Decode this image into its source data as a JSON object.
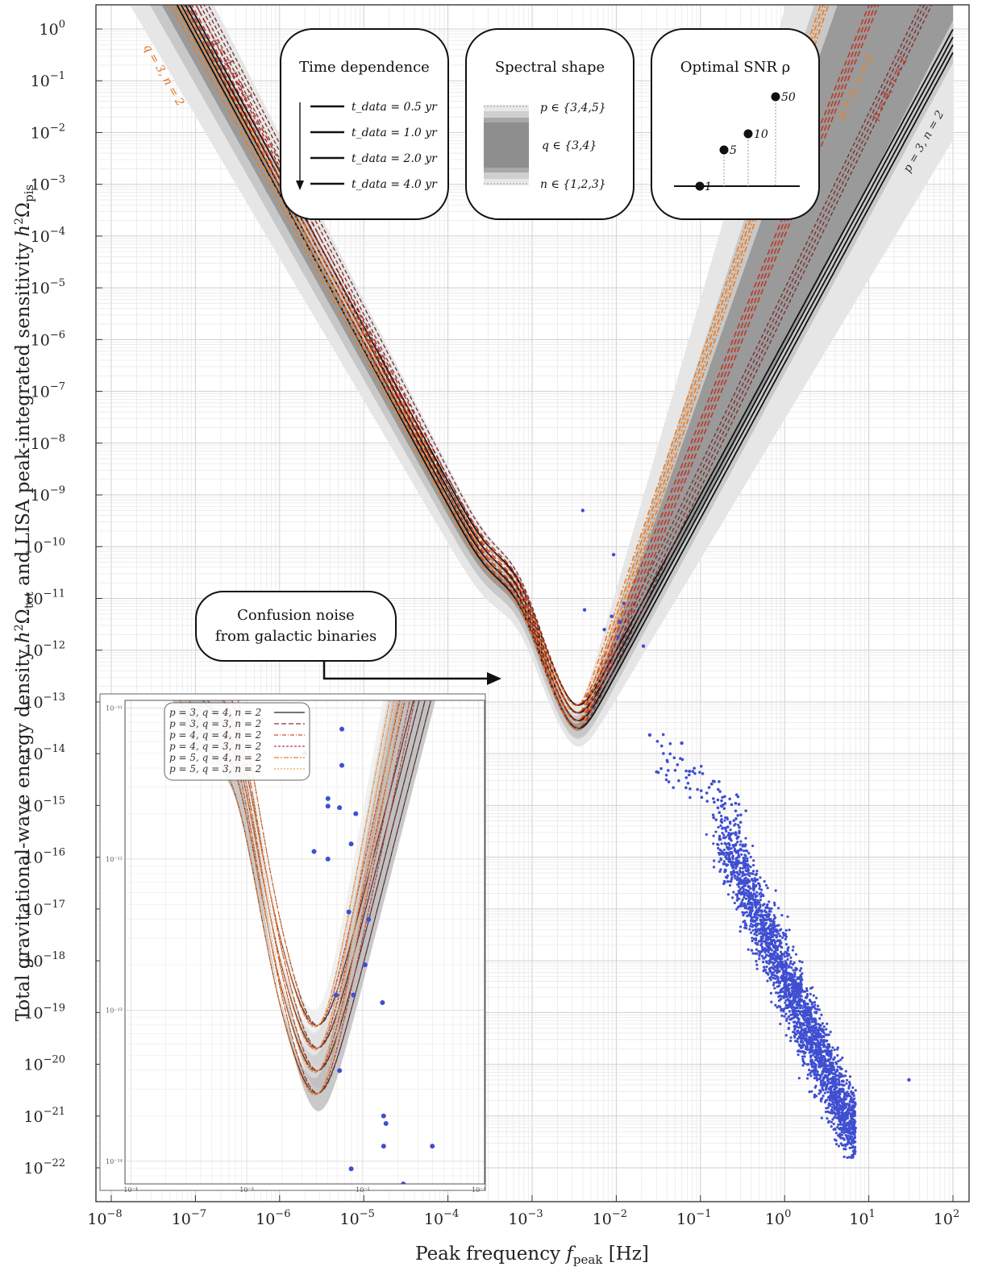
{
  "chart_data": {
    "type": "line",
    "xlabel": "Peak frequency f_peak [Hz]",
    "xlabel_parts": {
      "pre": "Peak frequency ",
      "var": "f",
      "sub": "peak",
      "post": " [Hz]"
    },
    "ylabel": "Total gravitational-wave energy density h²Ω_tot and LISA peak-integrated sensitivity h²Ω_pis",
    "ylabel_parts": {
      "p1": "Total gravitational-wave energy density ",
      "v1": "h",
      "sup1": "2",
      "om1": "Ω",
      "sub1": "tot",
      "p2": " and LISA peak-integrated sensitivity ",
      "v2": "h",
      "sup2": "2",
      "om2": "Ω",
      "sub2": "pis"
    },
    "x_scale": "log",
    "y_scale": "log",
    "xlim": [
      1e-08,
      100
    ],
    "ylim": [
      1e-22,
      1
    ],
    "x_ticks": [
      -8,
      -7,
      -6,
      -5,
      -4,
      -3,
      -2,
      -1,
      0,
      1,
      2
    ],
    "y_ticks": [
      0,
      -1,
      -2,
      -3,
      -4,
      -5,
      -6,
      -7,
      -8,
      -9,
      -10,
      -11,
      -12,
      -13,
      -14,
      -15,
      -16,
      -17,
      -18,
      -19,
      -20,
      -21,
      -22
    ],
    "grid": true,
    "sensitivity_minimum": {
      "f_peak": 0.0035,
      "h2Omega": 3e-14
    },
    "time_dependence": {
      "title": "Time dependence",
      "entries": [
        {
          "label": "t_data = 0.5 yr",
          "t": 0.5
        },
        {
          "label": "t_data = 1.0 yr",
          "t": 1.0
        },
        {
          "label": "t_data = 2.0 yr",
          "t": 2.0
        },
        {
          "label": "t_data = 4.0 yr",
          "t": 4.0
        }
      ]
    },
    "spectral_shape": {
      "title": "Spectral shape",
      "entries": [
        "p ∈ {3,4,5}",
        "q ∈ {3,4}",
        "n ∈ {1,2,3}"
      ]
    },
    "optimal_snr": {
      "title": "Optimal SNR ρ",
      "values": [
        1,
        5,
        10,
        50
      ]
    },
    "curve_labels": [
      {
        "text": "q = 3, n = 2",
        "color": "#e07020"
      },
      {
        "text": "q = 4, n = 2",
        "color": "#a04040"
      },
      {
        "text": "p = 5, n = 2",
        "color": "#f08020"
      },
      {
        "text": "p = 4, n = 2",
        "color": "#c04030"
      },
      {
        "text": "p = 3, n = 2",
        "color": "#333333"
      }
    ],
    "annotation": {
      "line1": "Confusion noise",
      "line2": "from galactic binaries"
    },
    "scatter_points": [
      {
        "f": 0.004,
        "y": 5e-10
      },
      {
        "f": 0.0093,
        "y": 7e-11
      },
      {
        "f": 0.0042,
        "y": 6e-12
      },
      {
        "f": 0.0123,
        "y": 8e-12
      },
      {
        "f": 0.0088,
        "y": 4.5e-12
      },
      {
        "f": 0.011,
        "y": 3.5e-12
      },
      {
        "f": 0.0072,
        "y": 2.5e-12
      },
      {
        "f": 0.0105,
        "y": 1.8e-12
      },
      {
        "f": 0.021,
        "y": 1.2e-12
      },
      {
        "f": 0.025,
        "y": 2.3e-14
      },
      {
        "f": 0.06,
        "y": 1.6e-14
      }
    ],
    "scatter_cloud": {
      "color": "#3f4fd1",
      "upper_region": {
        "f_range": [
          0.03,
          0.35
        ],
        "y_range": [
          1e-15,
          3e-14
        ]
      },
      "main_band": {
        "f_start": 0.4,
        "f_end": 7.0,
        "y_start": 3e-16,
        "y_end": 4e-22
      },
      "outlier": {
        "f": 30,
        "y": 5e-21
      }
    },
    "inset": {
      "legend": [
        {
          "label": "p = 3, q = 4, n = 2",
          "color": "#222222",
          "dash": ""
        },
        {
          "label": "p = 3, q = 3, n = 2",
          "color": "#7a3a3a",
          "dash": "6,3"
        },
        {
          "label": "p = 4, q = 4, n = 2",
          "color": "#d05030",
          "dash": "5,2,1,2"
        },
        {
          "label": "p = 4, q = 3, n = 2",
          "color": "#b04040",
          "dash": "3,2"
        },
        {
          "label": "p = 5, q = 4, n = 2",
          "color": "#e08030",
          "dash": "6,2,2,2"
        },
        {
          "label": "p = 5, q = 3, n = 2",
          "color": "#f0a050",
          "dash": "2,2"
        }
      ],
      "x_ticks": [
        "10⁻⁴",
        "10⁻³",
        "10⁻²",
        "10⁻¹"
      ],
      "y_ticks": [
        "10⁻¹¹",
        "10⁻¹²",
        "10⁻¹³",
        "10⁻¹⁴"
      ]
    }
  }
}
